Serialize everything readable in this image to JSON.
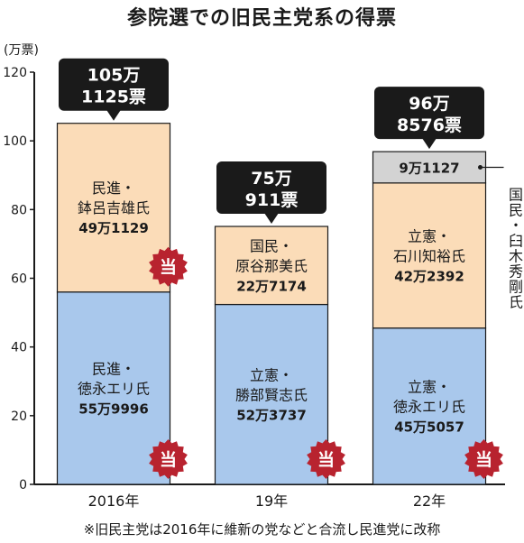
{
  "title": "参院選での旧民主党系の得票",
  "footnote": "※旧民主党は2016年に維新の党などと合流し民進党に改称",
  "chart_data": {
    "type": "bar",
    "stacked": true,
    "title": "参院選での旧民主党系の得票",
    "ylabel": "(万票)",
    "ylim": [
      0,
      120
    ],
    "yticks": [
      0,
      20,
      40,
      60,
      80,
      100,
      120
    ],
    "categories": [
      "2016年",
      "19年",
      "22年"
    ],
    "colors": {
      "lower": "#a9c8ec",
      "upper": "#fbdcb8",
      "small": "#d3d3d3",
      "callout": "#1a1a1a",
      "badge": "#b8232f"
    },
    "badge_text": "当",
    "totals": [
      {
        "line1": "105万",
        "line2": "1125票",
        "value": 105.1125
      },
      {
        "line1": "75万",
        "line2": "911票",
        "value": 75.0911
      },
      {
        "line1": "96万",
        "line2": "8576票",
        "value": 96.8576
      }
    ],
    "segments": [
      [
        {
          "value": 55.9996,
          "color": "lower",
          "lines": [
            "民進・",
            "徳永エリ氏",
            "55万9996"
          ],
          "winner": true
        },
        {
          "value": 49.1129,
          "color": "upper",
          "lines": [
            "民進・",
            "鉢呂吉雄氏",
            "49万1129"
          ],
          "winner": true
        }
      ],
      [
        {
          "value": 52.3737,
          "color": "lower",
          "lines": [
            "立憲・",
            "勝部賢志氏",
            "52万3737"
          ],
          "winner": true
        },
        {
          "value": 22.7174,
          "color": "upper",
          "lines": [
            "国民・",
            "原谷那美氏",
            "22万7174"
          ],
          "winner": false
        }
      ],
      [
        {
          "value": 45.5057,
          "color": "lower",
          "lines": [
            "立憲・",
            "徳永エリ氏",
            "45万5057"
          ],
          "winner": true
        },
        {
          "value": 42.2392,
          "color": "upper",
          "lines": [
            "立憲・",
            "石川知裕氏",
            "42万2392"
          ],
          "winner": false
        },
        {
          "value": 9.1127,
          "color": "small",
          "lines": [
            "9万1127"
          ],
          "winner": false,
          "external_label": "国民・臼木秀剛氏"
        }
      ]
    ]
  }
}
